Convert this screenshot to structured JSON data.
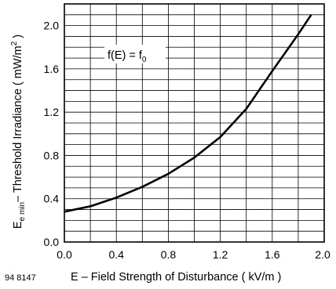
{
  "chart_data": {
    "type": "line",
    "title": "",
    "figure_number": "94 8147",
    "annotation": {
      "base": "f(E) = f",
      "subscript": "0"
    },
    "xlabel": "E – Field Strength of Disturbance ( kV/m )",
    "ylabel": {
      "main": "E",
      "sub": "e min",
      "rest": "– Threshold Irradiance ( mW/m",
      "sup": "2",
      "end": " )"
    },
    "xlim": [
      0,
      2.0
    ],
    "ylim": [
      0,
      2.2
    ],
    "x_ticks": [
      "0.0",
      "0.4",
      "0.8",
      "1.2",
      "1.6",
      "2.0"
    ],
    "y_ticks": [
      "0.0",
      "0.4",
      "0.8",
      "1.2",
      "1.6",
      "2.0"
    ],
    "grid": true,
    "series": [
      {
        "x": [
          0.0,
          0.2,
          0.4,
          0.6,
          0.8,
          1.0,
          1.2,
          1.4,
          1.6,
          1.8,
          1.9
        ],
        "y": [
          0.28,
          0.33,
          0.41,
          0.51,
          0.63,
          0.78,
          0.97,
          1.23,
          1.58,
          1.92,
          2.1
        ]
      }
    ]
  },
  "colors": {
    "line": "#000000",
    "grid": "#000000",
    "background": "#ffffff"
  }
}
